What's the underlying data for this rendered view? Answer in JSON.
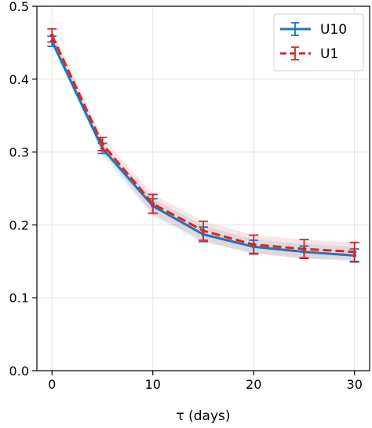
{
  "chart_data": {
    "type": "line",
    "title": "",
    "xlabel": "τ (days)",
    "ylabel": "",
    "xlim": [
      -1.5,
      31.5
    ],
    "ylim": [
      0.0,
      0.5
    ],
    "xticks": [
      0,
      10,
      20,
      30
    ],
    "xtick_labels": [
      "0",
      "10",
      "20",
      "30"
    ],
    "yticks": [
      0.0,
      0.1,
      0.2,
      0.3,
      0.4,
      0.5
    ],
    "ytick_labels": [
      "0.0",
      "0.1",
      "0.2",
      "0.3",
      "0.4",
      "0.5"
    ],
    "grid": true,
    "legend_position": "top-right",
    "x": [
      0,
      5,
      10,
      15,
      20,
      25,
      30
    ],
    "series": [
      {
        "name": "U10",
        "values": [
          0.452,
          0.305,
          0.226,
          0.187,
          0.17,
          0.163,
          0.158
        ],
        "error": [
          0.007,
          0.007,
          0.01,
          0.01,
          0.009,
          0.008,
          0.009
        ],
        "band_low": [
          0.445,
          0.296,
          0.212,
          0.176,
          0.162,
          0.154,
          0.15
        ],
        "band_high": [
          0.459,
          0.312,
          0.236,
          0.199,
          0.18,
          0.174,
          0.17
        ],
        "color": "#1f77b4",
        "line_style": "solid"
      },
      {
        "name": "U1",
        "values": [
          0.46,
          0.311,
          0.229,
          0.192,
          0.173,
          0.167,
          0.163
        ],
        "error": [
          0.009,
          0.009,
          0.013,
          0.013,
          0.013,
          0.013,
          0.013
        ],
        "band_low": [
          0.45,
          0.302,
          0.215,
          0.178,
          0.16,
          0.154,
          0.152
        ],
        "band_high": [
          0.469,
          0.32,
          0.242,
          0.205,
          0.186,
          0.18,
          0.176
        ],
        "color": "#d62728",
        "line_style": "dashed"
      }
    ]
  }
}
